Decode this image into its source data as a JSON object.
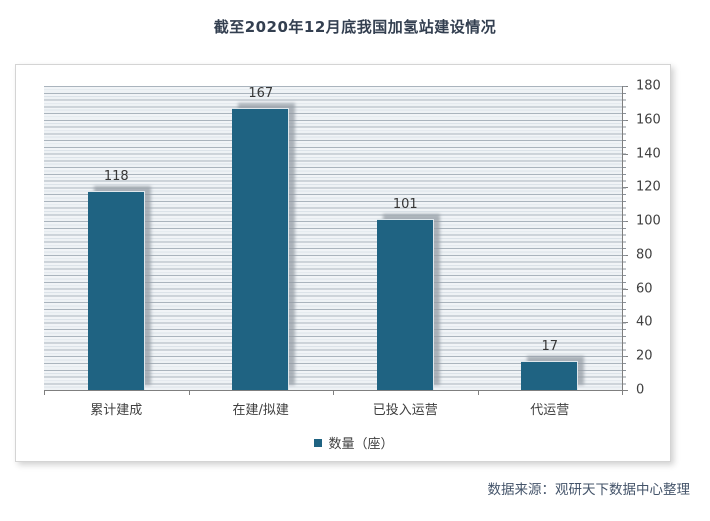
{
  "title": "截至2020年12月底我国加氢站建设情况",
  "source": "数据来源：观研天下数据中心整理",
  "legend": {
    "label": "数量（座）",
    "swatch_color": "#1F6382"
  },
  "colors": {
    "bar": "#1F6382",
    "title_text": "#333F50",
    "axis_line": "#7f7f7f",
    "tick_text": "#3f3f3f",
    "source_text": "#44546A",
    "plot_stripe_line": "#aab4bd",
    "plot_stripe_bg": "#eef2f5"
  },
  "chart_data": {
    "type": "bar",
    "title": "截至2020年12月底我国加氢站建设情况",
    "categories": [
      "累计建成",
      "在建/拟建",
      "已投入运营",
      "代运营"
    ],
    "values": [
      118,
      167,
      101,
      17
    ],
    "series_name": "数量（座）",
    "xlabel": "",
    "ylabel": "",
    "ylim": [
      0,
      180
    ],
    "ytick_step": 20,
    "yticks": [
      0,
      20,
      40,
      60,
      80,
      100,
      120,
      140,
      160,
      180
    ],
    "minor_grid_step": 4,
    "grid": "horizontal-minor",
    "value_axis_side": "right",
    "legend_position": "bottom-center",
    "data_labels": true
  }
}
